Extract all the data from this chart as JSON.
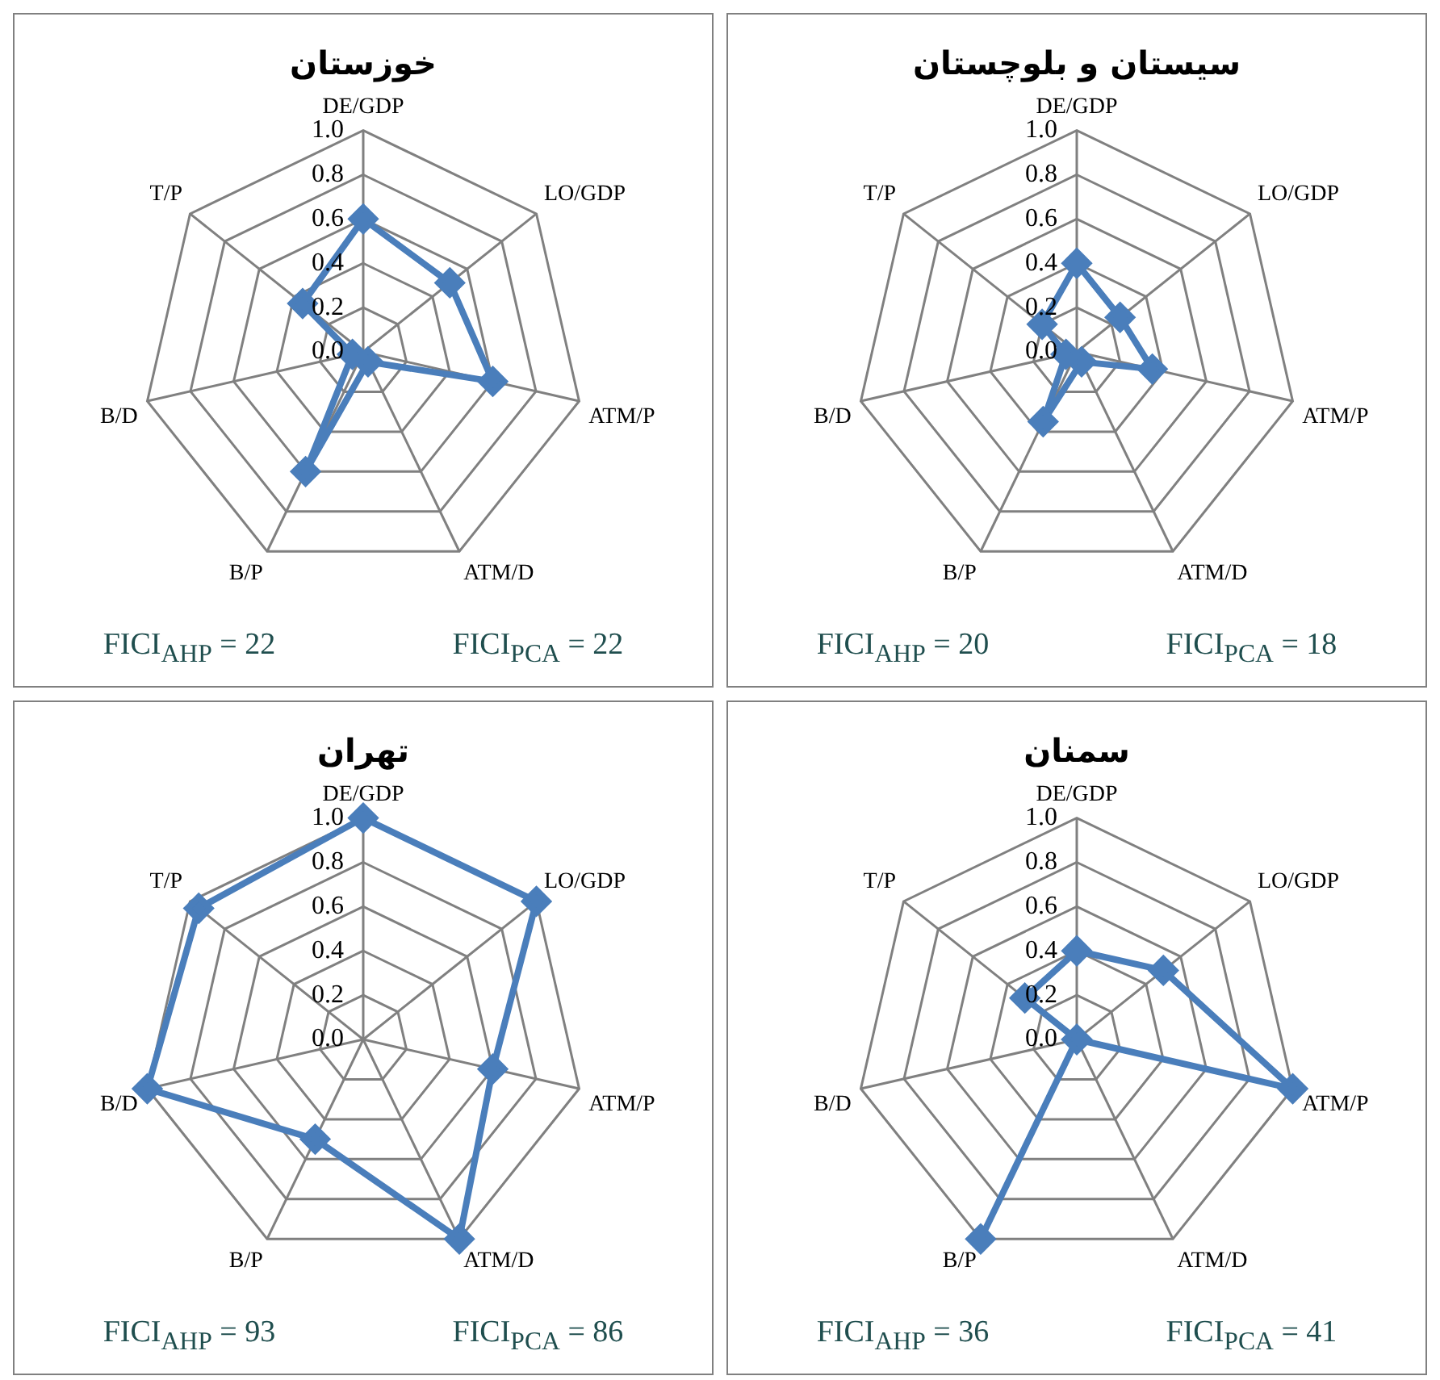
{
  "chart_data": [
    {
      "type": "radar",
      "title": "خوزستان",
      "categories": [
        "DE/GDP",
        "LO/GDP",
        "ATM/P",
        "ATM/D",
        "B/P",
        "B/D",
        "T/P"
      ],
      "series": [
        {
          "color": "#4a7ebb",
          "values": [
            0.6,
            0.5,
            0.6,
            0.05,
            0.6,
            0.05,
            0.35
          ]
        }
      ],
      "ylim": [
        0,
        1
      ],
      "yticks": [
        {
          "value": 0,
          "label": "0.0"
        },
        {
          "value": 0.2,
          "label": "0.2"
        },
        {
          "value": 0.4,
          "label": "0.4"
        },
        {
          "value": 0.6,
          "label": "0.6"
        },
        {
          "value": 0.8,
          "label": "0.8"
        },
        {
          "value": 1,
          "label": "1.0"
        }
      ],
      "grid": true,
      "marker": "diamond",
      "annotations": [
        "FICI$_{AHP}$ = 22",
        "FICI$_{PCA}$ = 22"
      ]
    },
    {
      "type": "radar",
      "title": "سیستان و بلوچستان",
      "categories": [
        "DE/GDP",
        "LO/GDP",
        "ATM/P",
        "ATM/D",
        "B/P",
        "B/D",
        "T/P"
      ],
      "series": [
        {
          "color": "#4a7ebb",
          "values": [
            0.4,
            0.25,
            0.35,
            0.05,
            0.35,
            0.05,
            0.2
          ]
        }
      ],
      "ylim": [
        0,
        1
      ],
      "yticks": [
        {
          "value": 0,
          "label": "0.0"
        },
        {
          "value": 0.2,
          "label": "0.2"
        },
        {
          "value": 0.4,
          "label": "0.4"
        },
        {
          "value": 0.6,
          "label": "0.6"
        },
        {
          "value": 0.8,
          "label": "0.8"
        },
        {
          "value": 1,
          "label": "1.0"
        }
      ],
      "grid": true,
      "marker": "diamond",
      "annotations": [
        "FICI$_{AHP}$ = 20",
        "FICI$_{PCA}$ = 18"
      ]
    },
    {
      "type": "radar",
      "title": "تهران",
      "categories": [
        "DE/GDP",
        "LO/GDP",
        "ATM/P",
        "ATM/D",
        "B/P",
        "B/D",
        "T/P"
      ],
      "series": [
        {
          "color": "#4a7ebb",
          "values": [
            1,
            1,
            0.6,
            1,
            0.5,
            1,
            0.95
          ]
        }
      ],
      "ylim": [
        0,
        1
      ],
      "yticks": [
        {
          "value": 0,
          "label": "0.0"
        },
        {
          "value": 0.2,
          "label": "0.2"
        },
        {
          "value": 0.4,
          "label": "0.4"
        },
        {
          "value": 0.6,
          "label": "0.6"
        },
        {
          "value": 0.8,
          "label": "0.8"
        },
        {
          "value": 1,
          "label": "1.0"
        }
      ],
      "grid": true,
      "marker": "diamond",
      "annotations": [
        "FICI$_{AHP}$ = 93",
        "FICI$_{PCA}$ = 86"
      ]
    },
    {
      "type": "radar",
      "title": "سمنان",
      "categories": [
        "DE/GDP",
        "LO/GDP",
        "ATM/P",
        "ATM/D",
        "B/P",
        "B/D",
        "T/P"
      ],
      "series": [
        {
          "color": "#4a7ebb",
          "values": [
            0.4,
            0.5,
            1,
            0,
            1,
            0,
            0.3
          ]
        }
      ],
      "ylim": [
        0,
        1
      ],
      "yticks": [
        {
          "value": 0,
          "label": "0.0"
        },
        {
          "value": 0.2,
          "label": "0.2"
        },
        {
          "value": 0.4,
          "label": "0.4"
        },
        {
          "value": 0.6,
          "label": "0.6"
        },
        {
          "value": 0.8,
          "label": "0.8"
        },
        {
          "value": 1,
          "label": "1.0"
        }
      ],
      "grid": true,
      "marker": "diamond",
      "annotations": [
        "FICI$_{AHP}$ = 36",
        "FICI$_{PCA}$ = 41"
      ]
    }
  ]
}
